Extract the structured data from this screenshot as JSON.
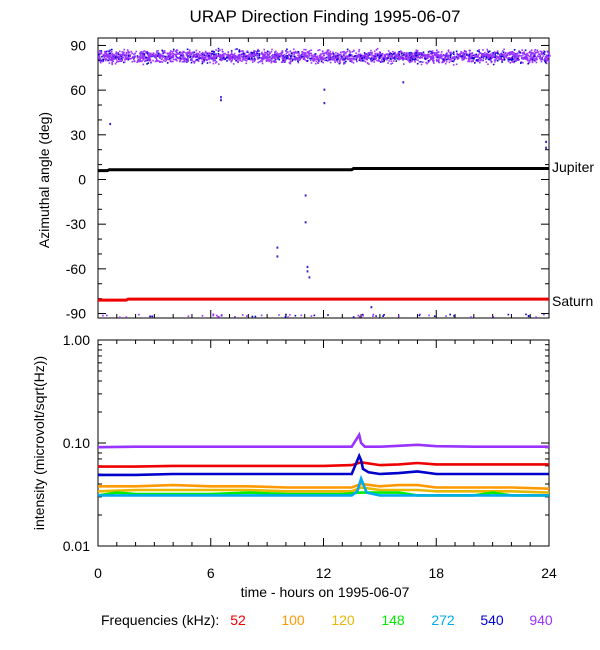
{
  "title": "URAP Direction Finding  1995-06-07",
  "xlabel": "time - hours on 1995-06-07",
  "legend_prefix": "Frequencies (kHz):",
  "chart_data": [
    {
      "type": "scatter",
      "ylabel": "Azimuthal angle (deg)",
      "xlim": [
        0,
        24
      ],
      "ylim": [
        -93,
        95
      ],
      "x_ticks": [
        0,
        6,
        12,
        18,
        24
      ],
      "y_ticks": [
        90,
        60,
        30,
        0,
        -30,
        -60,
        -90
      ],
      "y_tick_labels": [
        "90",
        "60",
        "30",
        "0",
        "-30",
        "-60",
        "-90"
      ],
      "reference_lines": [
        {
          "name": "Jupiter",
          "color": "#000000",
          "points": [
            [
              0,
              6
            ],
            [
              0.5,
              6
            ],
            [
              0.6,
              6.6
            ],
            [
              13.5,
              6.6
            ],
            [
              13.6,
              7.4
            ],
            [
              24,
              7.4
            ]
          ]
        },
        {
          "name": "Saturn",
          "color": "#ee0000",
          "points": [
            [
              0,
              -81
            ],
            [
              1.5,
              -81
            ],
            [
              1.6,
              -80.3
            ],
            [
              24,
              -80.3
            ]
          ]
        }
      ],
      "scatter_band": {
        "center": 83,
        "spread": 6,
        "colors": [
          "#9933ff",
          "#0000cc"
        ]
      },
      "outliers": [
        [
          0.6,
          38
        ],
        [
          6.5,
          56
        ],
        [
          6.5,
          54
        ],
        [
          9.5,
          -45
        ],
        [
          9.5,
          -51
        ],
        [
          11.0,
          -10
        ],
        [
          11.0,
          -28
        ],
        [
          11.1,
          -58
        ],
        [
          11.1,
          -61
        ],
        [
          11.2,
          -65
        ],
        [
          12.0,
          61
        ],
        [
          12.0,
          52
        ],
        [
          14.5,
          -85
        ],
        [
          16.2,
          66
        ],
        [
          23.8,
          26
        ],
        [
          23.8,
          22
        ]
      ]
    },
    {
      "type": "line",
      "ylabel": "intensity (microvolt/sqrt(Hz))",
      "xlim": [
        0,
        24
      ],
      "ylim": [
        0.01,
        1.0
      ],
      "yscale": "log",
      "x_ticks": [
        0,
        6,
        12,
        18,
        24
      ],
      "y_ticks": [
        1.0,
        0.1,
        0.01
      ],
      "y_tick_labels": [
        "1.00",
        "0.10",
        "0.01"
      ],
      "series": [
        {
          "name": "52",
          "color": "#ee0000",
          "x": [
            0,
            2,
            4,
            6,
            8,
            10,
            12,
            13.5,
            14,
            15,
            16,
            17,
            18,
            20,
            22,
            24
          ],
          "values": [
            0.059,
            0.059,
            0.06,
            0.06,
            0.06,
            0.06,
            0.06,
            0.061,
            0.065,
            0.061,
            0.062,
            0.064,
            0.062,
            0.062,
            0.062,
            0.062
          ]
        },
        {
          "name": "100",
          "color": "#ff9900",
          "x": [
            0,
            2,
            4,
            6,
            8,
            10,
            12,
            13.5,
            14,
            15,
            16,
            17,
            18,
            20,
            22,
            24
          ],
          "values": [
            0.038,
            0.038,
            0.039,
            0.038,
            0.038,
            0.037,
            0.037,
            0.037,
            0.04,
            0.038,
            0.039,
            0.039,
            0.037,
            0.037,
            0.037,
            0.036
          ]
        },
        {
          "name": "120",
          "color": "#e6b800",
          "x": [
            0,
            2,
            4,
            6,
            8,
            10,
            12,
            13.5,
            14,
            15,
            16,
            17,
            18,
            20,
            22,
            24
          ],
          "values": [
            0.034,
            0.035,
            0.035,
            0.035,
            0.035,
            0.034,
            0.034,
            0.034,
            0.037,
            0.035,
            0.035,
            0.035,
            0.034,
            0.034,
            0.034,
            0.033
          ]
        },
        {
          "name": "148",
          "color": "#00ee00",
          "x": [
            0,
            1,
            2,
            4,
            6,
            8,
            10,
            12,
            13,
            14,
            15,
            16,
            17,
            18,
            20,
            21,
            22,
            24
          ],
          "values": [
            0.031,
            0.033,
            0.032,
            0.032,
            0.032,
            0.033,
            0.032,
            0.032,
            0.032,
            0.033,
            0.033,
            0.033,
            0.031,
            0.031,
            0.031,
            0.033,
            0.031,
            0.031
          ]
        },
        {
          "name": "272",
          "color": "#00aaee",
          "x": [
            0,
            2,
            4,
            6,
            8,
            10,
            12,
            13.5,
            13.8,
            14,
            14.3,
            15,
            16,
            18,
            20,
            22,
            24
          ],
          "values": [
            0.031,
            0.031,
            0.031,
            0.031,
            0.031,
            0.031,
            0.031,
            0.031,
            0.034,
            0.045,
            0.033,
            0.031,
            0.031,
            0.031,
            0.031,
            0.031,
            0.031
          ]
        },
        {
          "name": "540",
          "color": "#0000cc",
          "x": [
            0,
            2,
            4,
            6,
            8,
            10,
            12,
            13.5,
            13.9,
            14.0,
            14.1,
            14.4,
            15,
            16,
            17,
            18,
            20,
            22,
            24
          ],
          "values": [
            0.049,
            0.049,
            0.05,
            0.05,
            0.05,
            0.05,
            0.05,
            0.05,
            0.075,
            0.068,
            0.056,
            0.052,
            0.05,
            0.051,
            0.053,
            0.05,
            0.05,
            0.05,
            0.05
          ]
        },
        {
          "name": "940",
          "color": "#9933ff",
          "x": [
            0,
            2,
            4,
            6,
            8,
            10,
            12,
            13.5,
            13.9,
            14.0,
            14.2,
            15,
            16,
            17,
            18,
            20,
            22,
            24
          ],
          "values": [
            0.091,
            0.092,
            0.092,
            0.092,
            0.092,
            0.092,
            0.092,
            0.092,
            0.12,
            0.1,
            0.092,
            0.092,
            0.094,
            0.096,
            0.093,
            0.092,
            0.092,
            0.092
          ]
        }
      ]
    }
  ]
}
